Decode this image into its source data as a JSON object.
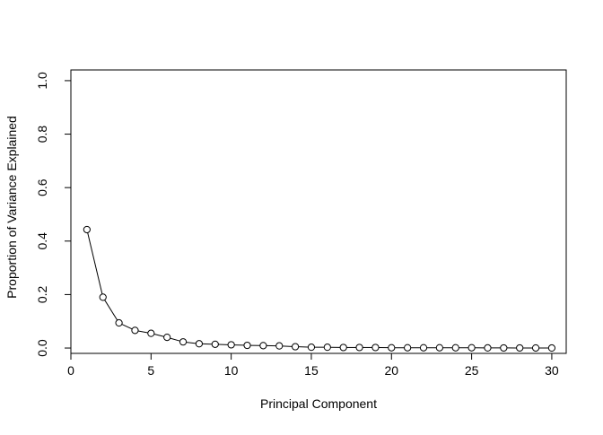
{
  "chart_data": {
    "type": "line",
    "title": "",
    "xlabel": "Principal Component",
    "ylabel": "Proportion of Variance Explained",
    "xlim": [
      0.0,
      30.9
    ],
    "ylim": [
      -0.02,
      1.04
    ],
    "x_ticks": [
      0,
      5,
      10,
      15,
      20,
      25,
      30
    ],
    "x_tick_labels": [
      "0",
      "5",
      "10",
      "15",
      "20",
      "25",
      "30"
    ],
    "y_ticks": [
      0.0,
      0.2,
      0.4,
      0.6,
      0.8,
      1.0
    ],
    "y_tick_labels": [
      "0.0",
      "0.2",
      "0.4",
      "0.6",
      "0.8",
      "1.0"
    ],
    "grid": false,
    "series": [
      {
        "line_color": "#000000",
        "marker": "open-circle",
        "x": [
          1,
          2,
          3,
          4,
          5,
          6,
          7,
          8,
          9,
          10,
          11,
          12,
          13,
          14,
          15,
          16,
          17,
          18,
          19,
          20,
          21,
          22,
          23,
          24,
          25,
          26,
          27,
          28,
          29,
          30
        ],
        "values": [
          0.443,
          0.19,
          0.094,
          0.066,
          0.055,
          0.04,
          0.023,
          0.016,
          0.014,
          0.012,
          0.01,
          0.009,
          0.008,
          0.005,
          0.003,
          0.003,
          0.002,
          0.002,
          0.002,
          0.001,
          0.001,
          0.001,
          0.001,
          0.001,
          0.001,
          0.0005,
          0.0004,
          0.0003,
          0.0002,
          0.0001
        ]
      }
    ]
  }
}
